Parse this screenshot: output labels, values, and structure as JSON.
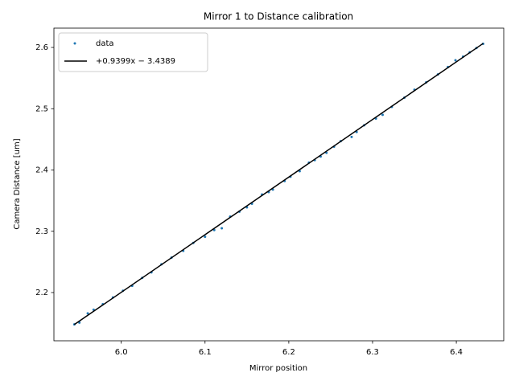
{
  "chart_data": {
    "type": "scatter",
    "title": "Mirror 1 to Distance calibration",
    "x_label": "Mirror position",
    "y_label": "Camera Distance [um]",
    "xlim": [
      5.9196,
      6.4566
    ],
    "ylim": [
      2.1213,
      2.6315
    ],
    "xticks": [
      {
        "value": 6,
        "label": "6.0"
      },
      6.1,
      6.2,
      6.3,
      6.4
    ],
    "yticks": [
      2.2,
      2.3,
      2.4,
      2.5,
      2.6
    ],
    "grid": false,
    "legend": "upper left",
    "series": [
      {
        "name": "data",
        "color": "#1f77b4",
        "type": "scatter",
        "x": [
          5.944,
          5.95,
          5.96,
          5.967,
          5.978,
          5.99,
          6.002,
          6.013,
          6.025,
          6.036,
          6.048,
          6.06,
          6.074,
          6.086,
          6.1,
          6.111,
          6.12,
          6.13,
          6.141,
          6.15,
          6.156,
          6.168,
          6.176,
          6.181,
          6.195,
          6.202,
          6.213,
          6.224,
          6.231,
          6.238,
          6.245,
          6.254,
          6.262,
          6.275,
          6.281,
          6.29,
          6.304,
          6.312,
          6.323,
          6.338,
          6.35,
          6.364,
          6.378,
          6.39,
          6.399,
          6.408,
          6.416,
          6.424,
          6.432
        ],
        "values": [
          2.148,
          2.151,
          2.166,
          2.172,
          2.181,
          2.192,
          2.203,
          2.211,
          2.224,
          2.233,
          2.246,
          2.257,
          2.268,
          2.281,
          2.291,
          2.302,
          2.305,
          2.324,
          2.332,
          2.339,
          2.345,
          2.36,
          2.364,
          2.368,
          2.382,
          2.389,
          2.398,
          2.412,
          2.416,
          2.422,
          2.428,
          2.438,
          2.447,
          2.454,
          2.462,
          2.473,
          2.484,
          2.49,
          2.503,
          2.518,
          2.531,
          2.543,
          2.556,
          2.568,
          2.579,
          2.585,
          2.592,
          2.599,
          2.606
        ]
      },
      {
        "name": "+0.9399x − 3.4389",
        "color": "#000000",
        "type": "line",
        "x": [
          5.944,
          6.432
        ],
        "values": [
          2.1478,
          2.6065
        ]
      }
    ]
  }
}
